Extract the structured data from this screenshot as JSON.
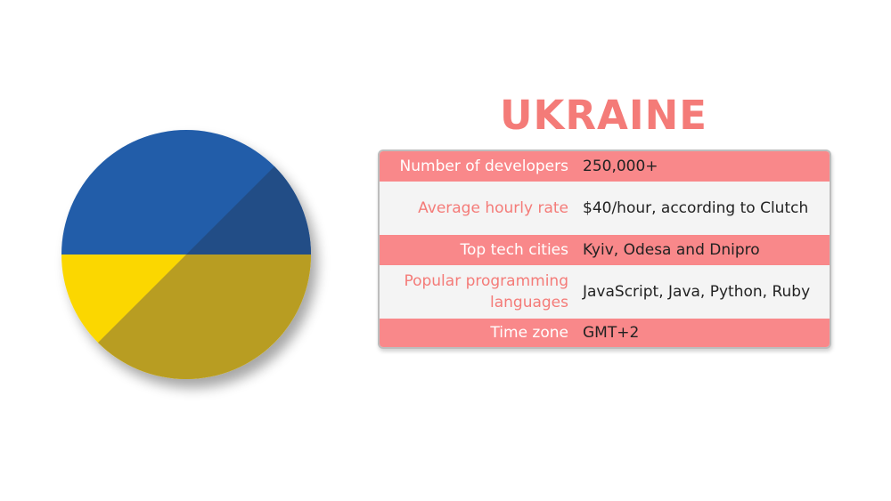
{
  "title": "UKRAINE",
  "flag": {
    "colors": {
      "blue": "#225da9",
      "blue_shade": "#234e86",
      "yellow": "#fbd705",
      "yellow_shade": "#b89d22"
    }
  },
  "table": {
    "colors": {
      "pink_row": "#f9888a",
      "grey_row": "#f4f4f4",
      "accent_text": "#f47b78"
    },
    "rows": [
      {
        "label": "Number of developers",
        "value": "250,000+"
      },
      {
        "label": "Average hourly rate",
        "value": "$40/hour, according to Clutch"
      },
      {
        "label": "Top tech cities",
        "value": "Kyiv, Odesa and Dnipro"
      },
      {
        "label": "Popular programming languages",
        "value": "JavaScript, Java, Python, Ruby"
      },
      {
        "label": "Time zone",
        "value": "GMT+2"
      }
    ]
  }
}
